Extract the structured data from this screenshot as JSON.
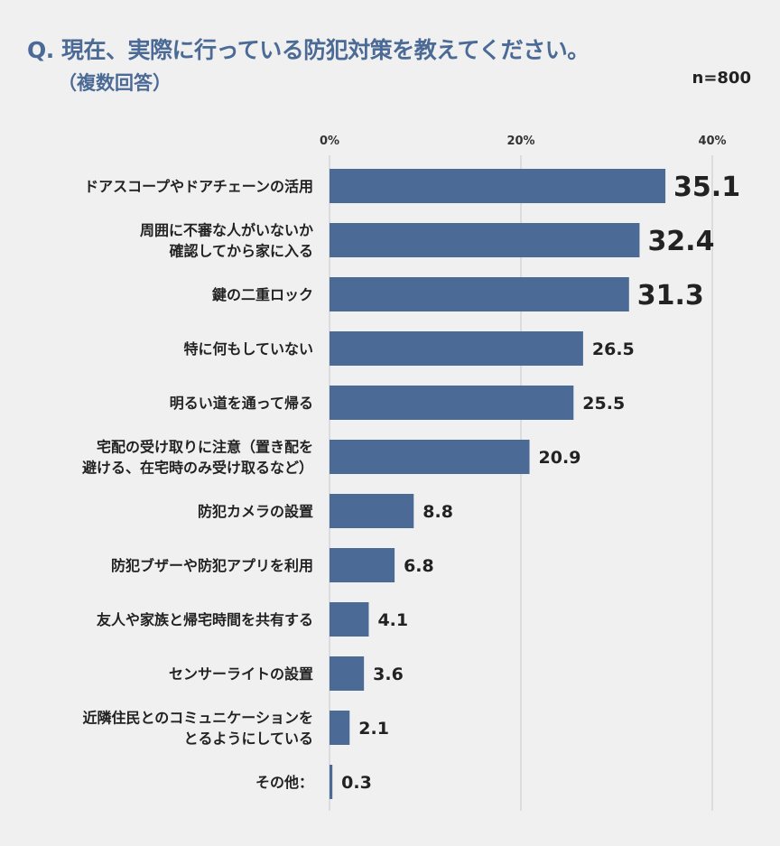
{
  "header": {
    "title": "Q. 現在、実際に行っている防犯対策を教えてください。",
    "subtitle": "（複数回答）",
    "sample_size": "n=800"
  },
  "colors": {
    "bar": "#4b6a96",
    "title": "#4b6a96",
    "grid": "#c8c8c8",
    "background": "#f0f0f0"
  },
  "chart_data": {
    "type": "bar",
    "orientation": "horizontal",
    "title": "Q. 現在、実際に行っている防犯対策を教えてください。",
    "xlabel": "",
    "ylabel": "",
    "xlim": [
      0,
      40
    ],
    "x_ticks": [
      0,
      20,
      40
    ],
    "x_tick_labels": [
      "0%",
      "20%",
      "40%"
    ],
    "grid": "vertical",
    "highlighted_top_values": 3,
    "categories": [
      [
        "ドアスコープやドアチェーンの活用"
      ],
      [
        "周囲に不審な人がいないか",
        "確認してから家に入る"
      ],
      [
        "鍵の二重ロック"
      ],
      [
        "特に何もしていない"
      ],
      [
        "明るい道を通って帰る"
      ],
      [
        "宅配の受け取りに注意（置き配を",
        "避ける、在宅時のみ受け取るなど）"
      ],
      [
        "防犯カメラの設置"
      ],
      [
        "防犯ブザーや防犯アプリを利用"
      ],
      [
        "友人や家族と帰宅時間を共有する"
      ],
      [
        "センサーライトの設置"
      ],
      [
        "近隣住民とのコミュニケーションを",
        "とるようにしている"
      ],
      [
        "その他："
      ]
    ],
    "values": [
      35.1,
      32.4,
      31.3,
      26.5,
      25.5,
      20.9,
      8.8,
      6.8,
      4.1,
      3.6,
      2.1,
      0.3
    ],
    "value_labels": [
      "35.1",
      "32.4",
      "31.3",
      "26.5",
      "25.5",
      "20.9",
      "8.8",
      "6.8",
      "4.1",
      "3.6",
      "2.1",
      "0.3"
    ]
  }
}
